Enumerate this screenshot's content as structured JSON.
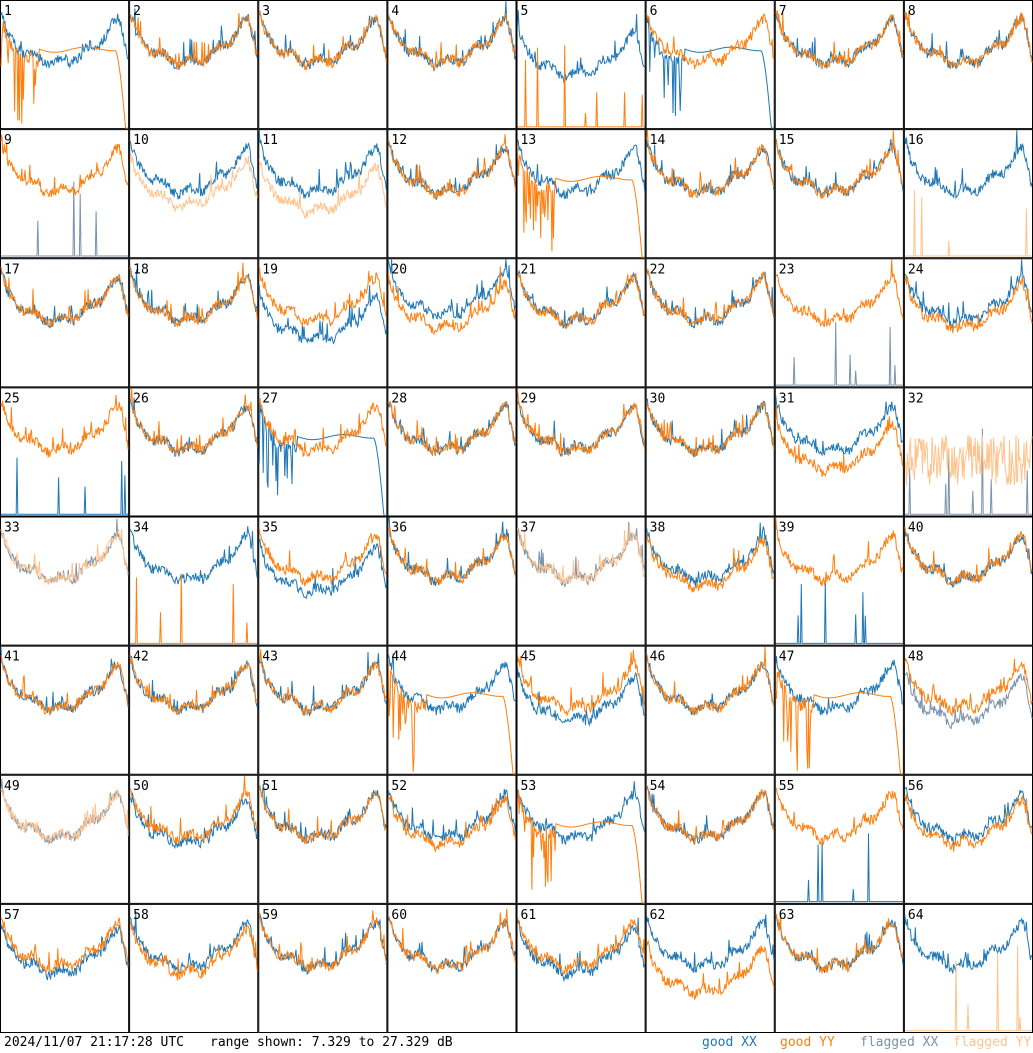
{
  "footer": {
    "timestamp": "2024/11/07 21:17:28 UTC",
    "range_text": "range shown: 7.329 to 27.329 dB",
    "legend": [
      {
        "label": "good XX",
        "color": "#1f77b4"
      },
      {
        "label": "good YY",
        "color": "#ff7f0e"
      },
      {
        "label": "flagged XX",
        "color": "#7b93ab"
      },
      {
        "label": "flagged YY",
        "color": "#ffc38d"
      }
    ]
  },
  "chart_data": {
    "type": "line",
    "grid": {
      "rows": 8,
      "cols": 8
    },
    "ylim": [
      7.329,
      27.329
    ],
    "x": "channel index (0–1 normalized)",
    "series_colors": {
      "good_xx": "#1f77b4",
      "good_yy": "#ff7f0e",
      "flagged_xx": "#7b93ab",
      "flagged_yy": "#ffc38d"
    },
    "antennas": [
      {
        "label": "1",
        "xx": {
          "flag": false,
          "profile": "normal",
          "offset": 0
        },
        "yy": {
          "flag": false,
          "profile": "rollover",
          "offset": 0
        }
      },
      {
        "label": "2",
        "xx": {
          "flag": false,
          "profile": "normal",
          "offset": 0
        },
        "yy": {
          "flag": false,
          "profile": "normal",
          "offset": 0
        }
      },
      {
        "label": "3",
        "xx": {
          "flag": false,
          "profile": "normal",
          "offset": 0
        },
        "yy": {
          "flag": false,
          "profile": "normal",
          "offset": 0
        }
      },
      {
        "label": "4",
        "xx": {
          "flag": false,
          "profile": "normal",
          "offset": 0
        },
        "yy": {
          "flag": false,
          "profile": "normal",
          "offset": 0
        }
      },
      {
        "label": "5",
        "xx": {
          "flag": false,
          "profile": "normal",
          "offset": -2
        },
        "yy": {
          "flag": false,
          "profile": "dead",
          "offset": 0
        }
      },
      {
        "label": "6",
        "xx": {
          "flag": false,
          "profile": "rollover",
          "offset": 0
        },
        "yy": {
          "flag": false,
          "profile": "normal",
          "offset": 0
        }
      },
      {
        "label": "7",
        "xx": {
          "flag": false,
          "profile": "normal",
          "offset": 0
        },
        "yy": {
          "flag": false,
          "profile": "normal",
          "offset": 0
        }
      },
      {
        "label": "8",
        "xx": {
          "flag": false,
          "profile": "normal",
          "offset": 0
        },
        "yy": {
          "flag": false,
          "profile": "normal",
          "offset": 0
        }
      },
      {
        "label": "9",
        "xx": {
          "flag": true,
          "profile": "dead",
          "offset": 0
        },
        "yy": {
          "flag": false,
          "profile": "normal",
          "offset": 0
        }
      },
      {
        "label": "10",
        "xx": {
          "flag": false,
          "profile": "normal",
          "offset": 0
        },
        "yy": {
          "flag": true,
          "profile": "normal",
          "offset": -2
        }
      },
      {
        "label": "11",
        "xx": {
          "flag": false,
          "profile": "normal",
          "offset": 0
        },
        "yy": {
          "flag": true,
          "profile": "normal",
          "offset": -3
        }
      },
      {
        "label": "12",
        "xx": {
          "flag": false,
          "profile": "normal",
          "offset": 0
        },
        "yy": {
          "flag": false,
          "profile": "normal",
          "offset": 0
        }
      },
      {
        "label": "13",
        "xx": {
          "flag": false,
          "profile": "normal",
          "offset": 0
        },
        "yy": {
          "flag": false,
          "profile": "rollover",
          "offset": 0
        }
      },
      {
        "label": "14",
        "xx": {
          "flag": false,
          "profile": "normal",
          "offset": 0
        },
        "yy": {
          "flag": false,
          "profile": "normal",
          "offset": 0
        }
      },
      {
        "label": "15",
        "xx": {
          "flag": false,
          "profile": "normal",
          "offset": 0
        },
        "yy": {
          "flag": false,
          "profile": "normal",
          "offset": 0
        }
      },
      {
        "label": "16",
        "xx": {
          "flag": false,
          "profile": "normal",
          "offset": 0
        },
        "yy": {
          "flag": true,
          "profile": "dead",
          "offset": 0
        }
      },
      {
        "label": "17",
        "xx": {
          "flag": false,
          "profile": "normal",
          "offset": 0
        },
        "yy": {
          "flag": false,
          "profile": "normal",
          "offset": 0
        }
      },
      {
        "label": "18",
        "xx": {
          "flag": false,
          "profile": "normal",
          "offset": 0
        },
        "yy": {
          "flag": false,
          "profile": "normal",
          "offset": 0
        }
      },
      {
        "label": "19",
        "xx": {
          "flag": false,
          "profile": "normal",
          "offset": -3
        },
        "yy": {
          "flag": false,
          "profile": "normal",
          "offset": 0
        }
      },
      {
        "label": "20",
        "xx": {
          "flag": false,
          "profile": "normal",
          "offset": 1
        },
        "yy": {
          "flag": false,
          "profile": "normal",
          "offset": -1
        }
      },
      {
        "label": "21",
        "xx": {
          "flag": false,
          "profile": "normal",
          "offset": 0
        },
        "yy": {
          "flag": false,
          "profile": "normal",
          "offset": 0
        }
      },
      {
        "label": "22",
        "xx": {
          "flag": false,
          "profile": "normal",
          "offset": 0
        },
        "yy": {
          "flag": false,
          "profile": "normal",
          "offset": 0
        }
      },
      {
        "label": "23",
        "xx": {
          "flag": true,
          "profile": "dead",
          "offset": 0
        },
        "yy": {
          "flag": false,
          "profile": "normal",
          "offset": 0
        }
      },
      {
        "label": "24",
        "xx": {
          "flag": false,
          "profile": "normal",
          "offset": 0
        },
        "yy": {
          "flag": false,
          "profile": "normal",
          "offset": -1
        }
      },
      {
        "label": "25",
        "xx": {
          "flag": false,
          "profile": "dead",
          "offset": 0
        },
        "yy": {
          "flag": false,
          "profile": "normal",
          "offset": 0
        }
      },
      {
        "label": "26",
        "xx": {
          "flag": false,
          "profile": "normal",
          "offset": 0
        },
        "yy": {
          "flag": false,
          "profile": "normal",
          "offset": 0
        }
      },
      {
        "label": "27",
        "xx": {
          "flag": false,
          "profile": "rollover",
          "offset": 0
        },
        "yy": {
          "flag": false,
          "profile": "normal",
          "offset": 0
        }
      },
      {
        "label": "28",
        "xx": {
          "flag": false,
          "profile": "normal",
          "offset": 0
        },
        "yy": {
          "flag": false,
          "profile": "normal",
          "offset": 0
        }
      },
      {
        "label": "29",
        "xx": {
          "flag": false,
          "profile": "normal",
          "offset": 0
        },
        "yy": {
          "flag": false,
          "profile": "normal",
          "offset": 0
        }
      },
      {
        "label": "30",
        "xx": {
          "flag": false,
          "profile": "normal",
          "offset": 0
        },
        "yy": {
          "flag": false,
          "profile": "normal",
          "offset": 0
        }
      },
      {
        "label": "31",
        "xx": {
          "flag": false,
          "profile": "normal",
          "offset": 0
        },
        "yy": {
          "flag": false,
          "profile": "normal",
          "offset": -3
        }
      },
      {
        "label": "32",
        "xx": {
          "flag": true,
          "profile": "dead",
          "offset": 0
        },
        "yy": {
          "flag": true,
          "profile": "noisy",
          "offset": 0
        }
      },
      {
        "label": "33",
        "xx": {
          "flag": true,
          "profile": "normal",
          "offset": 0
        },
        "yy": {
          "flag": true,
          "profile": "normal",
          "offset": 0
        }
      },
      {
        "label": "34",
        "xx": {
          "flag": false,
          "profile": "normal",
          "offset": 0
        },
        "yy": {
          "flag": false,
          "profile": "dead",
          "offset": 0
        }
      },
      {
        "label": "35",
        "xx": {
          "flag": false,
          "profile": "normal",
          "offset": -2
        },
        "yy": {
          "flag": false,
          "profile": "normal",
          "offset": 0
        }
      },
      {
        "label": "36",
        "xx": {
          "flag": false,
          "profile": "normal",
          "offset": 0
        },
        "yy": {
          "flag": false,
          "profile": "normal",
          "offset": 0
        }
      },
      {
        "label": "37",
        "xx": {
          "flag": true,
          "profile": "normal",
          "offset": 0
        },
        "yy": {
          "flag": true,
          "profile": "normal",
          "offset": 0
        }
      },
      {
        "label": "38",
        "xx": {
          "flag": false,
          "profile": "normal",
          "offset": 0
        },
        "yy": {
          "flag": false,
          "profile": "normal",
          "offset": -1
        }
      },
      {
        "label": "39",
        "xx": {
          "flag": false,
          "profile": "dead",
          "offset": 0
        },
        "yy": {
          "flag": false,
          "profile": "normal",
          "offset": 0
        }
      },
      {
        "label": "40",
        "xx": {
          "flag": false,
          "profile": "normal",
          "offset": 0
        },
        "yy": {
          "flag": false,
          "profile": "normal",
          "offset": 0
        }
      },
      {
        "label": "41",
        "xx": {
          "flag": false,
          "profile": "normal",
          "offset": 0
        },
        "yy": {
          "flag": false,
          "profile": "normal",
          "offset": 0
        }
      },
      {
        "label": "42",
        "xx": {
          "flag": false,
          "profile": "normal",
          "offset": 0
        },
        "yy": {
          "flag": false,
          "profile": "normal",
          "offset": 0
        }
      },
      {
        "label": "43",
        "xx": {
          "flag": false,
          "profile": "normal",
          "offset": 0
        },
        "yy": {
          "flag": false,
          "profile": "normal",
          "offset": 0
        }
      },
      {
        "label": "44",
        "xx": {
          "flag": false,
          "profile": "normal",
          "offset": 0
        },
        "yy": {
          "flag": false,
          "profile": "rollover",
          "offset": 0
        }
      },
      {
        "label": "45",
        "xx": {
          "flag": false,
          "profile": "normal",
          "offset": -2
        },
        "yy": {
          "flag": false,
          "profile": "normal",
          "offset": 0
        }
      },
      {
        "label": "46",
        "xx": {
          "flag": false,
          "profile": "normal",
          "offset": 0
        },
        "yy": {
          "flag": false,
          "profile": "normal",
          "offset": 0
        }
      },
      {
        "label": "47",
        "xx": {
          "flag": false,
          "profile": "normal",
          "offset": 0
        },
        "yy": {
          "flag": false,
          "profile": "rollover",
          "offset": 0
        }
      },
      {
        "label": "48",
        "xx": {
          "flag": true,
          "profile": "normal",
          "offset": -2
        },
        "yy": {
          "flag": false,
          "profile": "normal",
          "offset": 0
        }
      },
      {
        "label": "49",
        "xx": {
          "flag": true,
          "profile": "normal",
          "offset": 0
        },
        "yy": {
          "flag": true,
          "profile": "normal",
          "offset": 0
        }
      },
      {
        "label": "50",
        "xx": {
          "flag": false,
          "profile": "normal",
          "offset": -1
        },
        "yy": {
          "flag": false,
          "profile": "normal",
          "offset": 0
        }
      },
      {
        "label": "51",
        "xx": {
          "flag": false,
          "profile": "normal",
          "offset": 0
        },
        "yy": {
          "flag": false,
          "profile": "normal",
          "offset": 0
        }
      },
      {
        "label": "52",
        "xx": {
          "flag": false,
          "profile": "normal",
          "offset": 0
        },
        "yy": {
          "flag": false,
          "profile": "normal",
          "offset": -1
        }
      },
      {
        "label": "53",
        "xx": {
          "flag": false,
          "profile": "normal",
          "offset": 0
        },
        "yy": {
          "flag": false,
          "profile": "rollover",
          "offset": 0
        }
      },
      {
        "label": "54",
        "xx": {
          "flag": false,
          "profile": "normal",
          "offset": 0
        },
        "yy": {
          "flag": false,
          "profile": "normal",
          "offset": 0
        }
      },
      {
        "label": "55",
        "xx": {
          "flag": false,
          "profile": "dead",
          "offset": 0
        },
        "yy": {
          "flag": false,
          "profile": "normal",
          "offset": 0
        }
      },
      {
        "label": "56",
        "xx": {
          "flag": false,
          "profile": "normal",
          "offset": 0
        },
        "yy": {
          "flag": false,
          "profile": "normal",
          "offset": -1
        }
      },
      {
        "label": "57",
        "xx": {
          "flag": false,
          "profile": "normal",
          "offset": -1
        },
        "yy": {
          "flag": false,
          "profile": "normal",
          "offset": 0
        }
      },
      {
        "label": "58",
        "xx": {
          "flag": false,
          "profile": "normal",
          "offset": 0
        },
        "yy": {
          "flag": false,
          "profile": "normal",
          "offset": -1
        }
      },
      {
        "label": "59",
        "xx": {
          "flag": false,
          "profile": "normal",
          "offset": 0
        },
        "yy": {
          "flag": false,
          "profile": "normal",
          "offset": 0
        }
      },
      {
        "label": "60",
        "xx": {
          "flag": false,
          "profile": "normal",
          "offset": 0
        },
        "yy": {
          "flag": false,
          "profile": "normal",
          "offset": 0
        }
      },
      {
        "label": "61",
        "xx": {
          "flag": false,
          "profile": "normal",
          "offset": -1
        },
        "yy": {
          "flag": false,
          "profile": "normal",
          "offset": 0
        }
      },
      {
        "label": "62",
        "xx": {
          "flag": false,
          "profile": "normal",
          "offset": 0
        },
        "yy": {
          "flag": false,
          "profile": "normal",
          "offset": -4
        }
      },
      {
        "label": "63",
        "xx": {
          "flag": false,
          "profile": "normal",
          "offset": 0
        },
        "yy": {
          "flag": false,
          "profile": "normal",
          "offset": 0
        }
      },
      {
        "label": "64",
        "xx": {
          "flag": false,
          "profile": "normal",
          "offset": 0
        },
        "yy": {
          "flag": true,
          "profile": "dead",
          "offset": 0
        }
      }
    ]
  }
}
